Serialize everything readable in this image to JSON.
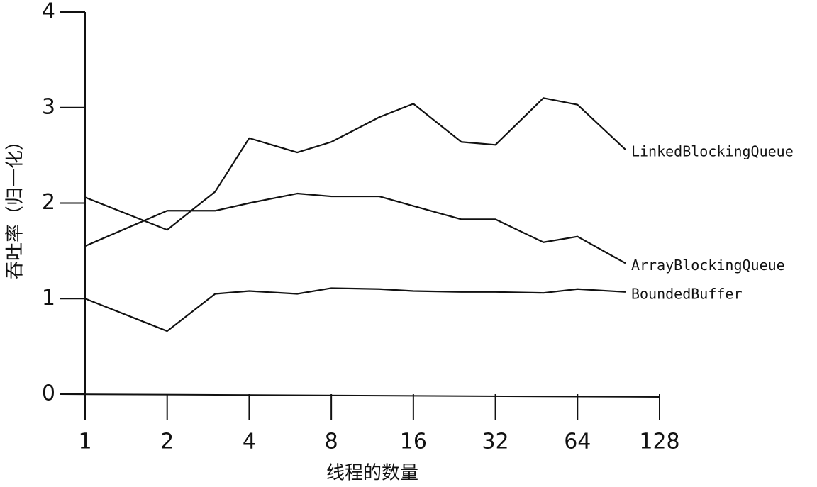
{
  "chart_data": {
    "type": "line",
    "x_label": "线程的数量",
    "y_label": "吞吐率（归一化）",
    "x": [
      1,
      2,
      3,
      4,
      6,
      8,
      12,
      16,
      24,
      32,
      48,
      64,
      96
    ],
    "series": [
      {
        "name": "LinkedBlockingQueue",
        "color": "#111111",
        "values": [
          2.06,
          1.72,
          2.12,
          2.68,
          2.53,
          2.64,
          2.9,
          3.04,
          2.64,
          2.61,
          3.1,
          3.03,
          2.56
        ]
      },
      {
        "name": "ArrayBlockingQueue",
        "color": "#111111",
        "values": [
          1.55,
          1.92,
          1.92,
          2.0,
          2.1,
          2.07,
          2.07,
          1.97,
          1.83,
          1.83,
          1.59,
          1.65,
          1.37
        ]
      },
      {
        "name": "BoundedBuffer",
        "color": "#111111",
        "values": [
          1.0,
          0.66,
          1.05,
          1.08,
          1.05,
          1.11,
          1.1,
          1.08,
          1.07,
          1.07,
          1.06,
          1.1,
          1.07
        ]
      }
    ],
    "xscale": "log2",
    "xlim": [
      1,
      128
    ],
    "xticks": [
      1,
      2,
      4,
      8,
      16,
      32,
      64,
      128
    ],
    "ylim": [
      0,
      4
    ],
    "yticks": [
      0,
      1,
      2,
      3,
      4
    ],
    "grid": false
  }
}
